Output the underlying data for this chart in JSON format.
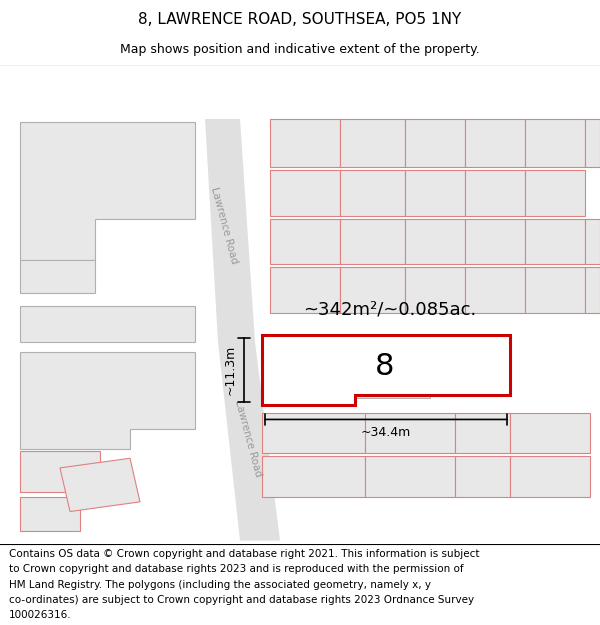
{
  "title": "8, LAWRENCE ROAD, SOUTHSEA, PO5 1NY",
  "subtitle": "Map shows position and indicative extent of the property.",
  "area_label": "~342m²/~0.085ac.",
  "width_label": "~34.4m",
  "height_label": "~11.3m",
  "property_number": "8",
  "footer_lines": [
    "Contains OS data © Crown copyright and database right 2021. This information is subject",
    "to Crown copyright and database rights 2023 and is reproduced with the permission of",
    "HM Land Registry. The polygons (including the associated geometry, namely x, y",
    "co-ordinates) are subject to Crown copyright and database rights 2023 Ordnance Survey",
    "100026316."
  ],
  "bg_color": "#ffffff",
  "road_fill": "#e0e0e0",
  "bldg_fill": "#e8e8e8",
  "bldg_edge_gray": "#b0b0b0",
  "bldg_edge_pink": "#e08080",
  "prop_edge_red": "#cc0000",
  "road_text_color": "#999999",
  "title_fontsize": 11,
  "subtitle_fontsize": 9,
  "label_fontsize": 13,
  "dim_fontsize": 9,
  "num_fontsize": 22,
  "footer_fontsize": 7.5
}
